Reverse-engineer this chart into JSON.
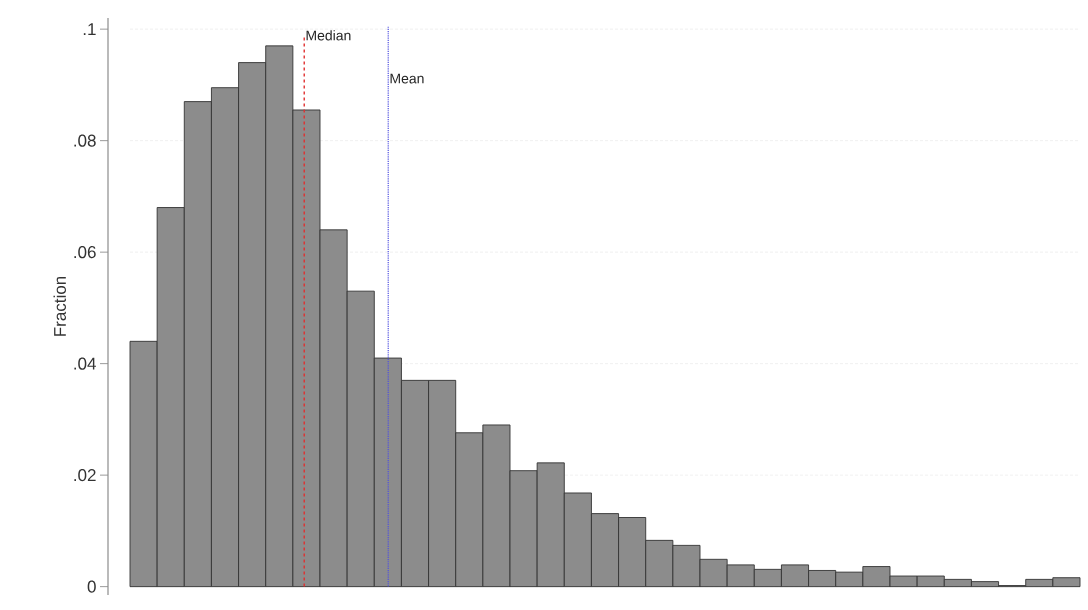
{
  "chart_data": {
    "type": "bar",
    "ylabel": "Fraction",
    "categories": [
      null,
      null,
      null,
      null,
      null,
      null,
      null,
      null,
      null,
      null,
      null,
      null,
      null,
      null,
      null,
      null,
      null,
      null,
      null,
      null,
      null,
      null,
      null,
      null,
      null,
      null,
      null,
      null,
      null,
      null,
      null,
      null,
      null,
      null,
      null
    ],
    "values": [
      0.044,
      0.068,
      0.087,
      0.0895,
      0.094,
      0.097,
      0.0855,
      0.064,
      0.053,
      0.041,
      0.037,
      0.037,
      0.0276,
      0.029,
      0.0208,
      0.0222,
      0.0168,
      0.0131,
      0.0124,
      0.0083,
      0.0074,
      0.0049,
      0.0039,
      0.0031,
      0.0039,
      0.0029,
      0.0026,
      0.0036,
      0.0019,
      0.0019,
      0.0013,
      0.0009,
      0.0002,
      0.0013,
      0.0016
    ],
    "color": "#8c8c8c",
    "ylim": [
      -0.0015,
      0.102
    ],
    "yticks": [
      0,
      {
        "value": 0.02,
        "label": ".02"
      },
      {
        "value": 0.04,
        "label": ".04"
      },
      {
        "value": 0.06,
        "label": ".06"
      },
      {
        "value": 0.08,
        "label": ".08"
      },
      {
        "value": 0.1,
        "label": ".1"
      }
    ],
    "grid": "y",
    "ref_lines": [
      {
        "axis": "x",
        "label": "Median",
        "color": "#e03030",
        "line_style": "dashed"
      },
      {
        "axis": "x",
        "label": "Mean",
        "color": "#5050e0",
        "line_style": "dotted"
      }
    ]
  }
}
